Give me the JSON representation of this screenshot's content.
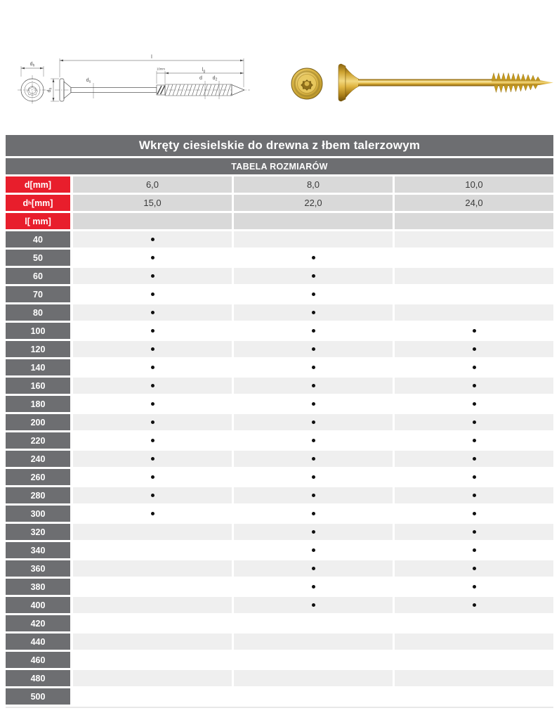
{
  "header": {
    "title": "Wkręty ciesielskie do drewna z łbem talerzowym",
    "subtitle": "TABELA ROZMIARÓW"
  },
  "drawing": {
    "labels": {
      "head_dia_top": {
        "base": "d",
        "sub": "h"
      },
      "head_dia_side": {
        "base": "d",
        "sub": "h"
      },
      "total_length": {
        "base": "l",
        "sub": ""
      },
      "thread_length": {
        "base": "l",
        "sub": "g"
      },
      "shank_dia": {
        "base": "d",
        "sub": "s"
      },
      "thread_dia": {
        "base": "d",
        "sub": ""
      },
      "tip_dia": {
        "base": "d",
        "sub": "2"
      },
      "cutter_note": "10mm"
    }
  },
  "table": {
    "spec_rows": [
      {
        "label": {
          "base": "d",
          "sub": "",
          "unit": " [mm]"
        },
        "values": [
          "6,0",
          "8,0",
          "10,0"
        ]
      },
      {
        "label": {
          "base": "d",
          "sub": "h",
          "unit": " [mm]"
        },
        "values": [
          "15,0",
          "22,0",
          "24,0"
        ]
      },
      {
        "label": {
          "base": "l",
          "sub": "",
          "unit": " [ mm]"
        },
        "values": [
          "",
          "",
          ""
        ]
      }
    ],
    "length_rows": [
      {
        "label": "40",
        "available": [
          true,
          false,
          false
        ]
      },
      {
        "label": "50",
        "available": [
          true,
          true,
          false
        ]
      },
      {
        "label": "60",
        "available": [
          true,
          true,
          false
        ]
      },
      {
        "label": "70",
        "available": [
          true,
          true,
          false
        ]
      },
      {
        "label": "80",
        "available": [
          true,
          true,
          false
        ]
      },
      {
        "label": "100",
        "available": [
          true,
          true,
          true
        ]
      },
      {
        "label": "120",
        "available": [
          true,
          true,
          true
        ]
      },
      {
        "label": "140",
        "available": [
          true,
          true,
          true
        ]
      },
      {
        "label": "160",
        "available": [
          true,
          true,
          true
        ]
      },
      {
        "label": "180",
        "available": [
          true,
          true,
          true
        ]
      },
      {
        "label": "200",
        "available": [
          true,
          true,
          true
        ]
      },
      {
        "label": "220",
        "available": [
          true,
          true,
          true
        ]
      },
      {
        "label": "240",
        "available": [
          true,
          true,
          true
        ]
      },
      {
        "label": "260",
        "available": [
          true,
          true,
          true
        ]
      },
      {
        "label": "280",
        "available": [
          true,
          true,
          true
        ]
      },
      {
        "label": "300",
        "available": [
          true,
          true,
          true
        ]
      },
      {
        "label": "320",
        "available": [
          false,
          true,
          true
        ]
      },
      {
        "label": "340",
        "available": [
          false,
          true,
          true
        ]
      },
      {
        "label": "360",
        "available": [
          false,
          true,
          true
        ]
      },
      {
        "label": "380",
        "available": [
          false,
          true,
          true
        ]
      },
      {
        "label": "400",
        "available": [
          false,
          true,
          true
        ]
      },
      {
        "label": "420",
        "available": [
          false,
          false,
          false
        ]
      },
      {
        "label": "440",
        "available": [
          false,
          false,
          false
        ]
      },
      {
        "label": "460",
        "available": [
          false,
          false,
          false
        ]
      },
      {
        "label": "480",
        "available": [
          false,
          false,
          false
        ]
      },
      {
        "label": "500",
        "available": [
          false,
          false,
          false
        ]
      }
    ]
  },
  "colors": {
    "bar_gray": "#6d6e71",
    "label_red": "#e81e2c",
    "spec_cell_gray": "#d9d9d9",
    "row_light": "#efefef",
    "row_white": "#ffffff",
    "bullet_black": "#101010",
    "drawing_line": "#4d4d4d",
    "screw_gold": "#d2a02a"
  }
}
